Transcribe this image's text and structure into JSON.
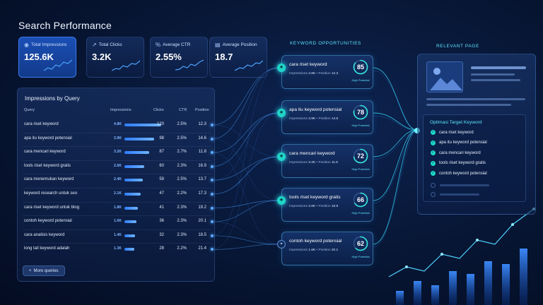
{
  "title": "Search Performance",
  "stats": [
    {
      "label": "Total Impressions",
      "value": "125.6K",
      "icon": "eye-icon"
    },
    {
      "label": "Total Clicks",
      "value": "3.2K",
      "icon": "cursor-icon"
    },
    {
      "label": "Average CTR",
      "value": "2.55%",
      "icon": "percent-icon"
    },
    {
      "label": "Average Position",
      "value": "18.7",
      "icon": "position-icon"
    }
  ],
  "table": {
    "title": "Impressions by Query",
    "headers": {
      "query": "Query",
      "impressions": "Impressions",
      "clicks": "Clicks",
      "ctr": "CTR",
      "position": "Position"
    },
    "rows": [
      {
        "query": "cara riset keyword",
        "impressions": "4.8K",
        "clicks": "120",
        "ctr": "2.5%",
        "position": "12.3",
        "level": 1.0
      },
      {
        "query": "apa itu keyword potensial",
        "impressions": "3.9K",
        "clicks": "98",
        "ctr": "2.5%",
        "position": "14.6",
        "level": 0.81
      },
      {
        "query": "cara mencari keyword",
        "impressions": "3.2K",
        "clicks": "87",
        "ctr": "2.7%",
        "position": "11.8",
        "level": 0.67
      },
      {
        "query": "tools riset keyword gratis",
        "impressions": "2.6K",
        "clicks": "60",
        "ctr": "2.3%",
        "position": "16.9",
        "level": 0.54
      },
      {
        "query": "cara menemukan keyword",
        "impressions": "2.4K",
        "clicks": "59",
        "ctr": "2.5%",
        "position": "13.7",
        "level": 0.5
      },
      {
        "query": "keyword research untuk seo",
        "impressions": "2.1K",
        "clicks": "47",
        "ctr": "2.2%",
        "position": "17.3",
        "level": 0.44
      },
      {
        "query": "cara riset keyword untuk blog",
        "impressions": "1.8K",
        "clicks": "41",
        "ctr": "2.3%",
        "position": "19.2",
        "level": 0.37
      },
      {
        "query": "contoh keyword potensial",
        "impressions": "1.6K",
        "clicks": "36",
        "ctr": "2.3%",
        "position": "20.1",
        "level": 0.33
      },
      {
        "query": "cara analisis keyword",
        "impressions": "1.4K",
        "clicks": "32",
        "ctr": "2.3%",
        "position": "18.5",
        "level": 0.29
      },
      {
        "query": "long tail keyword adalah",
        "impressions": "1.3K",
        "clicks": "28",
        "ctr": "2.2%",
        "position": "21.4",
        "level": 0.27
      }
    ],
    "more_label": "More queries"
  },
  "keyword_opportunities": {
    "title": "KEYWORD OPPORTUNITIES",
    "impressions_label": "Impressions",
    "position_label": "Position",
    "cards": [
      {
        "query": "cara riset keyword",
        "impressions": "4.8K",
        "position": "12.3",
        "score": "85",
        "score_level": 0.85,
        "tag": "High Potential",
        "active": true
      },
      {
        "query": "apa itu keyword potensial",
        "impressions": "3.9K",
        "position": "14.6",
        "score": "78",
        "score_level": 0.78,
        "tag": "High Potential",
        "active": true
      },
      {
        "query": "cara mencari keyword",
        "impressions": "3.2K",
        "position": "11.8",
        "score": "72",
        "score_level": 0.72,
        "tag": "High Potential",
        "active": true
      },
      {
        "query": "tools riset keyword gratis",
        "impressions": "2.6K",
        "position": "16.9",
        "score": "66",
        "score_level": 0.66,
        "tag": "High Potential",
        "active": true
      },
      {
        "query": "contoh keyword potensial",
        "impressions": "1.6K",
        "position": "20.1",
        "score": "62",
        "score_level": 0.62,
        "tag": "High Potential",
        "active": false
      }
    ]
  },
  "relevant_page": {
    "title": "RELEVANT PAGE",
    "target_title": "Optimasi Target Keyword",
    "items": [
      "cara riset keyword",
      "apa itu keyword potensial",
      "cara mencari keyword",
      "tools riset keyword gratis",
      "contoh keyword potensial"
    ]
  },
  "colors": {
    "accent": "#5ee6ff",
    "bar": "#2f7cff",
    "node": "#1fd6c8"
  }
}
